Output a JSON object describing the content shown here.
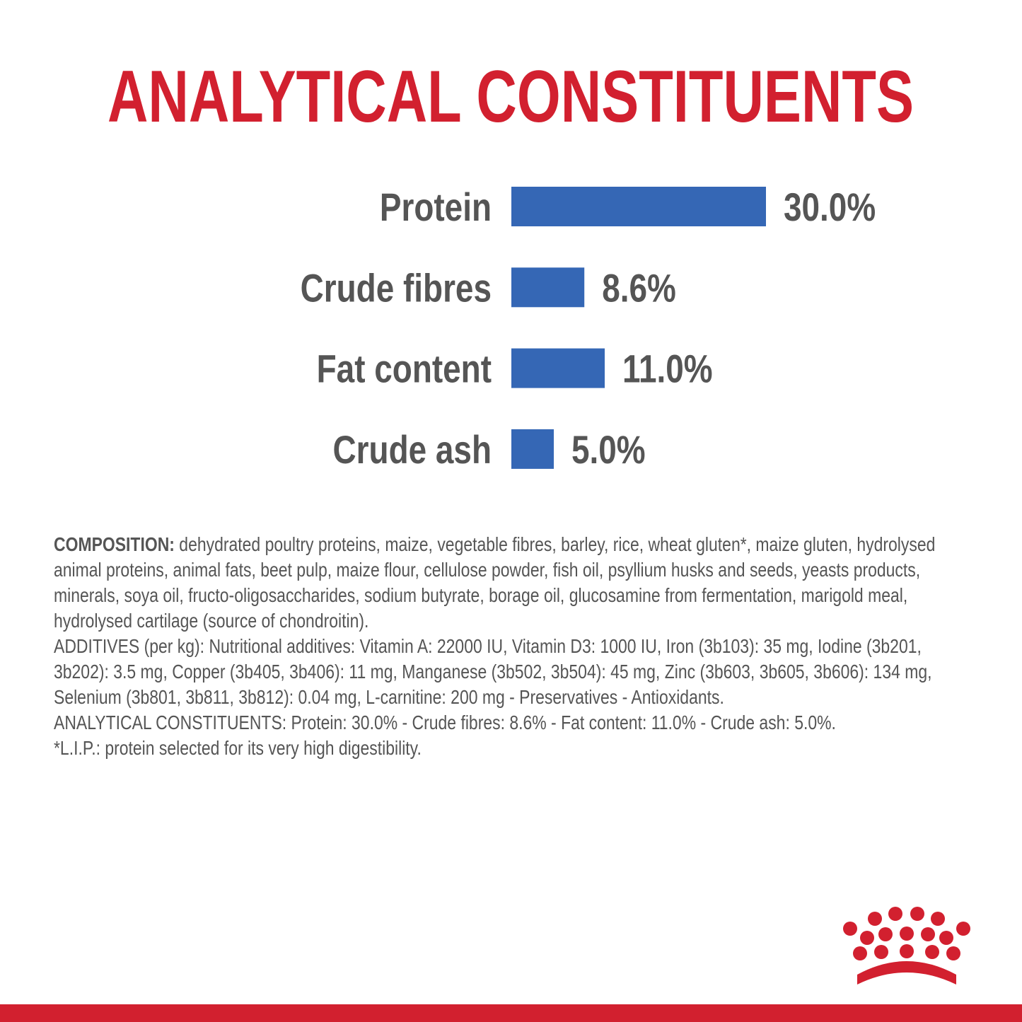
{
  "chart_data": {
    "type": "bar",
    "orientation": "horizontal",
    "title": "ANALYTICAL CONSTITUENTS",
    "categories": [
      "Protein",
      "Crude fibres",
      "Fat content",
      "Crude ash"
    ],
    "values": [
      30.0,
      8.6,
      11.0,
      5.0
    ],
    "value_labels": [
      "30.0%",
      "8.6%",
      "11.0%",
      "5.0%"
    ],
    "color": "#3567b5"
  },
  "composition": {
    "label": "COMPOSITION:",
    "text": " dehydrated poultry proteins, maize, vegetable fibres, barley, rice, wheat gluten*, maize gluten, hydrolysed animal proteins, animal fats, beet pulp, maize flour, cellulose powder, fish oil, psyllium husks and seeds, yeasts products, minerals, soya oil, fructo-oligosaccharides, sodium butyrate, borage oil, glucosamine from fermentation, marigold meal, hydrolysed cartilage (source of chondroitin).",
    "paragraphs": [
      "ADDITIVES (per kg): Nutritional additives: Vitamin A: 22000 IU, Vitamin D3: 1000 IU, Iron (3b103): 35 mg, Iodine (3b201, 3b202): 3.5 mg, Copper (3b405, 3b406): 11 mg, Manganese (3b502, 3b504): 45 mg, Zinc (3b603, 3b605, 3b606): 134 mg, Selenium (3b801, 3b811, 3b812): 0.04 mg, L-carnitine: 200 mg - Preservatives - Antioxidants.",
      "ANALYTICAL CONSTITUENTS: Protein: 30.0% - Crude fibres: 8.6% - Fat content: 11.0% - Crude ash: 5.0%.",
      "*L.I.P.: protein selected for its very high digestibility."
    ]
  }
}
